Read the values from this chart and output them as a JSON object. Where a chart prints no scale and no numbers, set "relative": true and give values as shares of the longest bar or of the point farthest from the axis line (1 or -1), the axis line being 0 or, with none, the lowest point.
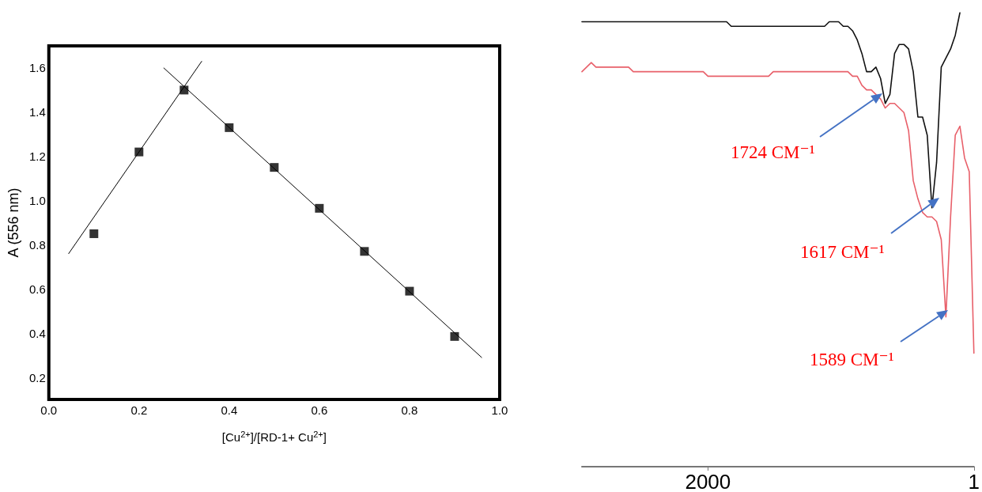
{
  "chart_data": [
    {
      "type": "scatter",
      "xlabel": "[Cu$^{2+}$]/[RD-1+ Cu$^{2+}$]",
      "ylabel": "A (556 nm)",
      "xlim": [
        0,
        1
      ],
      "xticks": [
        {
          "value": 0,
          "label": "0.0"
        },
        0.2,
        0.4,
        0.6,
        0.8,
        {
          "value": 1,
          "label": "1.0"
        }
      ],
      "ylim": [
        0.1,
        1.7
      ],
      "yticks": [
        0.2,
        0.4,
        0.6,
        0.8,
        {
          "value": 1,
          "label": "1.0"
        },
        1.2,
        1.4,
        1.6
      ],
      "grid": false,
      "series": [
        {
          "marker": "square",
          "color": "#000000",
          "x": [
            0.1,
            0.2,
            0.3,
            0.4,
            0.5,
            0.6,
            0.7,
            0.8,
            0.9
          ],
          "values": [
            0.85,
            1.22,
            1.5,
            1.33,
            1.15,
            0.965,
            0.77,
            0.59,
            0.385
          ]
        },
        {
          "type": "line",
          "marker": "none",
          "color": "#000000",
          "x": [
            0.044,
            0.339
          ],
          "values": [
            0.76,
            1.63
          ]
        },
        {
          "type": "line",
          "marker": "none",
          "color": "#000000",
          "x": [
            0.255,
            0.96
          ],
          "values": [
            1.6,
            0.29
          ]
        }
      ]
    },
    {
      "type": "line",
      "relative": true,
      "grid": false,
      "marker": "none",
      "categories": [
        null,
        null,
        null,
        null,
        null,
        null,
        null,
        null,
        null,
        null,
        null,
        null,
        null,
        null,
        null,
        null,
        null,
        null,
        null,
        null,
        null,
        null,
        null,
        null,
        null,
        null,
        null,
        "2000",
        null,
        null,
        null,
        null,
        null,
        null,
        null,
        null,
        null,
        null,
        null,
        null,
        null,
        null,
        null,
        null,
        null,
        null,
        null,
        null,
        null,
        null,
        null,
        null,
        null,
        null,
        null,
        null,
        null,
        null,
        null,
        null,
        null,
        null,
        null,
        null,
        null,
        null,
        null,
        null,
        null,
        null,
        null,
        null,
        null,
        null,
        null,
        null,
        null,
        null,
        null,
        null,
        null,
        null,
        null,
        null,
        "1"
      ],
      "series": [
        {
          "color": "#111111",
          "values": [
            0.98,
            0.98,
            0.98,
            0.98,
            0.98,
            0.98,
            0.98,
            0.98,
            0.98,
            0.98,
            0.98,
            0.98,
            0.98,
            0.98,
            0.98,
            0.98,
            0.98,
            0.98,
            0.98,
            0.98,
            0.98,
            0.98,
            0.98,
            0.98,
            0.98,
            0.98,
            0.98,
            0.98,
            0.98,
            0.98,
            0.98,
            0.98,
            0.97,
            0.97,
            0.97,
            0.97,
            0.97,
            0.97,
            0.97,
            0.97,
            0.97,
            0.97,
            0.97,
            0.97,
            0.97,
            0.97,
            0.97,
            0.97,
            0.97,
            0.97,
            0.97,
            0.97,
            0.97,
            0.98,
            0.98,
            0.98,
            0.97,
            0.97,
            0.96,
            0.94,
            0.91,
            0.87,
            0.87,
            0.88,
            0.855,
            0.8,
            0.82,
            0.91,
            0.93,
            0.93,
            0.92,
            0.87,
            0.77,
            0.77,
            0.73,
            0.57,
            0.67,
            0.88,
            0.9,
            0.92,
            0.95,
            1.0,
            null,
            null,
            null
          ]
        },
        {
          "color": "#e8606a",
          "values": [
            0.87,
            0.88,
            0.89,
            0.88,
            0.88,
            0.88,
            0.88,
            0.88,
            0.88,
            0.88,
            0.88,
            0.87,
            0.87,
            0.87,
            0.87,
            0.87,
            0.87,
            0.87,
            0.87,
            0.87,
            0.87,
            0.87,
            0.87,
            0.87,
            0.87,
            0.87,
            0.87,
            0.86,
            0.86,
            0.86,
            0.86,
            0.86,
            0.86,
            0.86,
            0.86,
            0.86,
            0.86,
            0.86,
            0.86,
            0.86,
            0.86,
            0.87,
            0.87,
            0.87,
            0.87,
            0.87,
            0.87,
            0.87,
            0.87,
            0.87,
            0.87,
            0.87,
            0.87,
            0.87,
            0.87,
            0.87,
            0.87,
            0.87,
            0.86,
            0.86,
            0.84,
            0.83,
            0.83,
            0.82,
            0.81,
            0.79,
            0.8,
            0.8,
            0.79,
            0.78,
            0.74,
            0.63,
            0.59,
            0.56,
            0.55,
            0.55,
            0.54,
            0.5,
            0.33,
            0.55,
            0.73,
            0.75,
            0.68,
            0.65,
            0.25
          ]
        }
      ],
      "annotations": [
        "1724 CM⁻¹",
        "1617 CM⁻¹",
        "1589 CM⁻¹"
      ]
    }
  ]
}
